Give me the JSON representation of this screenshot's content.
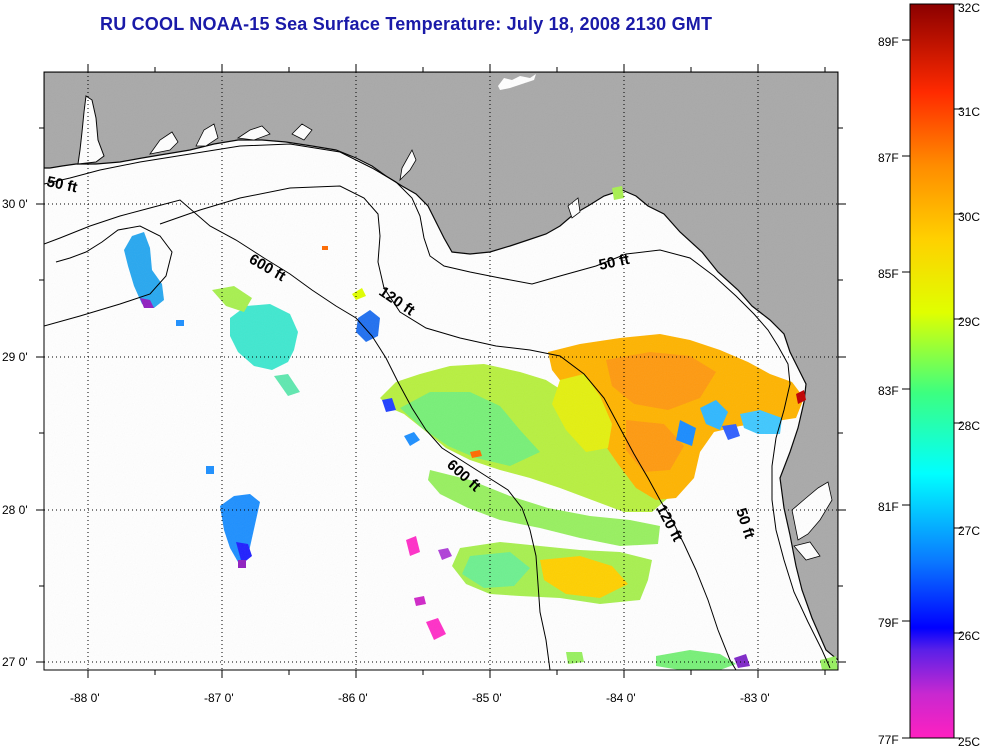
{
  "title": "RU COOL  NOAA-15  Sea Surface Temperature:  July 18, 2008 2130 GMT",
  "map": {
    "lon_range": [
      -88.3,
      -82.5
    ],
    "lat_range": [
      26.95,
      30.9
    ],
    "lon_ticks": [
      -88,
      -87,
      -86,
      -85,
      -84,
      -83
    ],
    "lon_labels": [
      "-88 0'",
      "-87 0'",
      "-86 0'",
      "-85 0'",
      "-84 0'",
      "-83 0'"
    ],
    "lat_ticks": [
      27,
      28,
      29,
      30
    ],
    "lat_labels": [
      "27 0'",
      "28 0'",
      "29 0'",
      "30 0'"
    ],
    "grid": "dotted",
    "land_color": "#a9a9a9",
    "contour_labels": [
      "50 ft",
      "600 ft",
      "120 ft",
      "50 ft",
      "600 ft",
      "120 ft",
      "50 ft"
    ]
  },
  "colorbar": {
    "celsius_labels": [
      "32C",
      "31C",
      "30C",
      "29C",
      "28C",
      "27C",
      "26C",
      "25C"
    ],
    "fahrenheit_labels": [
      "89F",
      "87F",
      "85F",
      "83F",
      "81F",
      "79F",
      "77F"
    ],
    "range_c": [
      25,
      32
    ],
    "colors": [
      "#ff20c0",
      "#9a30d8",
      "#0000ff",
      "#0a78ff",
      "#00ffff",
      "#3cff80",
      "#e0ff00",
      "#ffd000",
      "#ff8c00",
      "#ff2a00",
      "#8b0000"
    ]
  }
}
